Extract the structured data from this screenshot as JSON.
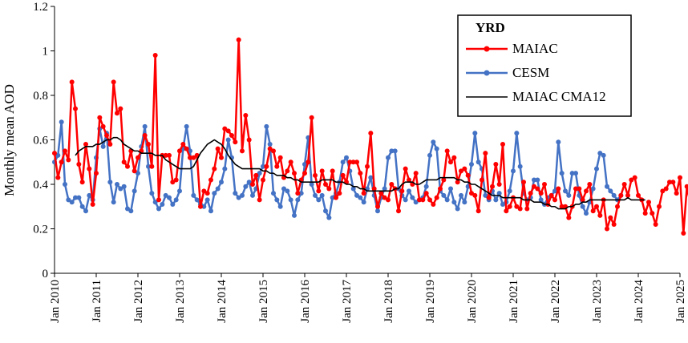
{
  "chart_data": {
    "type": "line",
    "title": "",
    "xlabel": "",
    "ylabel": "Monthly mean AOD",
    "xlim": [
      "2010-01",
      "2025-01"
    ],
    "ylim": [
      0,
      1.2
    ],
    "yticks": [
      0,
      0.2,
      0.4,
      0.6,
      0.8,
      1,
      1.2
    ],
    "xtick_labels": [
      "Jan 2010",
      "Jan 2011",
      "Jan 2012",
      "Jan 2013",
      "Jan 2014",
      "Jan 2015",
      "Jan 2016",
      "Jan 2017",
      "Jan 2018",
      "Jan 2019",
      "Jan 2020",
      "Jan 2021",
      "Jan 2022",
      "Jan 2023",
      "Jan 2024",
      "Jan 2025"
    ],
    "grid": false,
    "legend": {
      "title": "YRD",
      "placement": "top-right"
    },
    "colors": {
      "maiac": "#ff0000",
      "cesm": "#4472c4",
      "cma12": "#000000"
    },
    "series": [
      {
        "name": "MAIAC",
        "start": "2010-01",
        "frequency": "monthly",
        "values": [
          0.54,
          0.43,
          0.5,
          0.55,
          0.51,
          0.86,
          0.74,
          0.49,
          0.41,
          0.58,
          0.47,
          0.31,
          0.45,
          0.7,
          0.66,
          0.62,
          0.58,
          0.86,
          0.72,
          0.74,
          0.5,
          0.48,
          0.55,
          0.46,
          0.52,
          0.55,
          0.62,
          0.58,
          0.48,
          0.98,
          0.33,
          0.53,
          0.53,
          0.53,
          0.41,
          0.42,
          0.55,
          0.58,
          0.56,
          0.52,
          0.52,
          0.53,
          0.3,
          0.37,
          0.36,
          0.42,
          0.47,
          0.56,
          0.52,
          0.65,
          0.64,
          0.62,
          0.59,
          1.05,
          0.55,
          0.71,
          0.6,
          0.4,
          0.44,
          0.33,
          0.42,
          0.48,
          0.56,
          0.55,
          0.48,
          0.52,
          0.43,
          0.46,
          0.5,
          0.45,
          0.36,
          0.42,
          0.45,
          0.5,
          0.7,
          0.44,
          0.37,
          0.46,
          0.4,
          0.38,
          0.46,
          0.34,
          0.36,
          0.44,
          0.41,
          0.5,
          0.5,
          0.5,
          0.45,
          0.36,
          0.48,
          0.63,
          0.38,
          0.3,
          0.36,
          0.34,
          0.33,
          0.4,
          0.38,
          0.28,
          0.37,
          0.47,
          0.42,
          0.4,
          0.45,
          0.33,
          0.33,
          0.36,
          0.33,
          0.31,
          0.34,
          0.38,
          0.42,
          0.55,
          0.5,
          0.52,
          0.41,
          0.46,
          0.47,
          0.44,
          0.36,
          0.35,
          0.28,
          0.42,
          0.54,
          0.34,
          0.39,
          0.49,
          0.4,
          0.58,
          0.28,
          0.3,
          0.34,
          0.3,
          0.29,
          0.41,
          0.29,
          0.36,
          0.39,
          0.38,
          0.36,
          0.4,
          0.31,
          0.35,
          0.33,
          0.38,
          0.3,
          0.3,
          0.25,
          0.3,
          0.38,
          0.38,
          0.33,
          0.37,
          0.4,
          0.28,
          0.3,
          0.26,
          0.33,
          0.2,
          0.25,
          0.22,
          0.3,
          0.35,
          0.4,
          0.35,
          0.42,
          0.43,
          0.35,
          0.33,
          0.27,
          0.32,
          0.27,
          0.22,
          0.3,
          0.37,
          0.38,
          0.41,
          0.41,
          0.36,
          0.43,
          0.18,
          0.39,
          0.31
        ]
      },
      {
        "name": "CESM",
        "start": "2010-01",
        "frequency": "monthly",
        "values": [
          0.5,
          0.53,
          0.68,
          0.4,
          0.33,
          0.32,
          0.34,
          0.34,
          0.3,
          0.28,
          0.35,
          0.33,
          0.52,
          0.65,
          0.57,
          0.63,
          0.41,
          0.32,
          0.4,
          0.38,
          0.39,
          0.29,
          0.28,
          0.37,
          0.45,
          0.57,
          0.66,
          0.48,
          0.36,
          0.32,
          0.29,
          0.31,
          0.35,
          0.34,
          0.31,
          0.33,
          0.37,
          0.56,
          0.66,
          0.55,
          0.35,
          0.33,
          0.31,
          0.3,
          0.33,
          0.28,
          0.36,
          0.38,
          0.41,
          0.47,
          0.6,
          0.52,
          0.36,
          0.34,
          0.35,
          0.39,
          0.41,
          0.35,
          0.38,
          0.45,
          0.48,
          0.66,
          0.58,
          0.36,
          0.33,
          0.3,
          0.38,
          0.37,
          0.33,
          0.26,
          0.33,
          0.36,
          0.49,
          0.61,
          0.4,
          0.35,
          0.33,
          0.35,
          0.28,
          0.25,
          0.34,
          0.36,
          0.41,
          0.5,
          0.52,
          0.46,
          0.38,
          0.35,
          0.34,
          0.32,
          0.38,
          0.43,
          0.35,
          0.28,
          0.34,
          0.38,
          0.52,
          0.55,
          0.55,
          0.38,
          0.35,
          0.33,
          0.37,
          0.34,
          0.32,
          0.33,
          0.34,
          0.39,
          0.53,
          0.59,
          0.56,
          0.37,
          0.35,
          0.33,
          0.38,
          0.32,
          0.29,
          0.35,
          0.32,
          0.39,
          0.49,
          0.63,
          0.5,
          0.47,
          0.35,
          0.33,
          0.37,
          0.33,
          0.36,
          0.31,
          0.32,
          0.37,
          0.46,
          0.63,
          0.48,
          0.36,
          0.33,
          0.34,
          0.42,
          0.42,
          0.33,
          0.31,
          0.34,
          0.35,
          0.37,
          0.59,
          0.45,
          0.37,
          0.35,
          0.45,
          0.45,
          0.35,
          0.3,
          0.27,
          0.32,
          0.38,
          0.47,
          0.54,
          0.53,
          0.39,
          0.37,
          0.35,
          0.33,
          0.35
        ]
      },
      {
        "name": "MAIAC CMA12",
        "start": "2010-07",
        "frequency": "monthly",
        "values": [
          0.53,
          0.55,
          0.56,
          0.57,
          0.57,
          0.57,
          0.58,
          0.58,
          0.59,
          0.6,
          0.6,
          0.61,
          0.61,
          0.6,
          0.58,
          0.57,
          0.56,
          0.55,
          0.55,
          0.54,
          0.54,
          0.54,
          0.54,
          0.53,
          0.53,
          0.53,
          0.51,
          0.5,
          0.49,
          0.48,
          0.47,
          0.47,
          0.47,
          0.47,
          0.48,
          0.51,
          0.54,
          0.56,
          0.58,
          0.59,
          0.6,
          0.59,
          0.58,
          0.56,
          0.53,
          0.51,
          0.49,
          0.48,
          0.47,
          0.47,
          0.47,
          0.47,
          0.47,
          0.47,
          0.46,
          0.46,
          0.45,
          0.45,
          0.44,
          0.44,
          0.44,
          0.43,
          0.43,
          0.42,
          0.42,
          0.41,
          0.41,
          0.41,
          0.41,
          0.41,
          0.41,
          0.42,
          0.42,
          0.42,
          0.42,
          0.41,
          0.41,
          0.41,
          0.4,
          0.4,
          0.39,
          0.39,
          0.38,
          0.38,
          0.37,
          0.37,
          0.37,
          0.37,
          0.37,
          0.37,
          0.37,
          0.37,
          0.38,
          0.38,
          0.4,
          0.41,
          0.41,
          0.41,
          0.4,
          0.4,
          0.41,
          0.42,
          0.42,
          0.42,
          0.42,
          0.43,
          0.43,
          0.43,
          0.43,
          0.43,
          0.42,
          0.42,
          0.41,
          0.41,
          0.4,
          0.4,
          0.39,
          0.38,
          0.37,
          0.36,
          0.35,
          0.35,
          0.35,
          0.34,
          0.34,
          0.34,
          0.34,
          0.34,
          0.34,
          0.33,
          0.33,
          0.33,
          0.32,
          0.32,
          0.32,
          0.31,
          0.31,
          0.3,
          0.3,
          0.29,
          0.29,
          0.29,
          0.3,
          0.3,
          0.31,
          0.31,
          0.32,
          0.32,
          0.33,
          0.33,
          0.33,
          0.33,
          0.33,
          0.33,
          0.33,
          0.33,
          0.33,
          0.33,
          0.33,
          0.34,
          0.33,
          0.33,
          0.33,
          0.33,
          0.33
        ]
      }
    ]
  }
}
